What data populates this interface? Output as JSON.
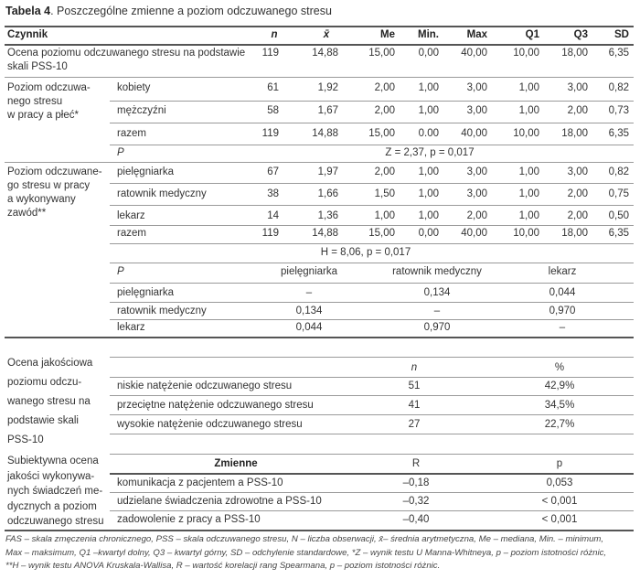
{
  "caption": {
    "label": "Tabela 4",
    "text": ". Poszczególne zmienne a poziom odczuwanego stresu"
  },
  "header": [
    "Czynnik",
    "n",
    "x̄",
    "Me",
    "Min.",
    "Max",
    "Q1",
    "Q3",
    "SD"
  ],
  "overall": {
    "label": "Ocena poziomu odczuwanego stresu na podstawie skali PSS-10",
    "values": [
      "119",
      "14,88",
      "15,00",
      "0,00",
      "40,00",
      "10,00",
      "18,00",
      "6,35"
    ]
  },
  "gender": {
    "label": "Poziom odczuwa-nego stresu w pracy a płeć*",
    "label_lines": [
      "Poziom odczuwa-",
      "nego stresu",
      "w pracy a płeć*"
    ],
    "rows": [
      {
        "label": "kobiety",
        "values": [
          "61",
          "1,92",
          "2,00",
          "1,00",
          "3,00",
          "1,00",
          "3,00",
          "0,82"
        ]
      },
      {
        "label": "mężczyźni",
        "values": [
          "58",
          "1,67",
          "2,00",
          "1,00",
          "3,00",
          "1,00",
          "2,00",
          "0,73"
        ]
      },
      {
        "label": "razem",
        "values": [
          "119",
          "14,88",
          "15,00",
          "0.00",
          "40,00",
          "10,00",
          "18,00",
          "6,35"
        ]
      }
    ],
    "p_label": "P",
    "test": "Z = 2,37, p = 0,017"
  },
  "profession": {
    "label_lines": [
      "Poziom odczuwane-",
      "go stresu w pracy",
      "a wykonywany",
      "zawód**"
    ],
    "rows": [
      {
        "label": "pielęgniarka",
        "values": [
          "67",
          "1,97",
          "2,00",
          "1,00",
          "3,00",
          "1,00",
          "3,00",
          "0,82"
        ]
      },
      {
        "label": "ratownik medyczny",
        "values": [
          "38",
          "1,66",
          "1,50",
          "1,00",
          "3,00",
          "1,00",
          "2,00",
          "0,75"
        ]
      },
      {
        "label": "lekarz",
        "values": [
          "14",
          "1,36",
          "1,00",
          "1,00",
          "2,00",
          "1,00",
          "2,00",
          "0,50"
        ]
      },
      {
        "label": "razem",
        "values": [
          "119",
          "14,88",
          "15,00",
          "0,00",
          "40,00",
          "10,00",
          "18,00",
          "6,35"
        ]
      }
    ],
    "test": "H = 8,06, p = 0,017",
    "pairwise": {
      "corner": "P",
      "columns": [
        "pielęgniarka",
        "ratownik medyczny",
        "lekarz"
      ],
      "rows": [
        {
          "label": "pielęgniarka",
          "values": [
            "–",
            "0,134",
            "0,044"
          ]
        },
        {
          "label": "ratownik medyczny",
          "values": [
            "0,134",
            "–",
            "0,970"
          ]
        },
        {
          "label": "lekarz",
          "values": [
            "0,044",
            "0,970",
            "–"
          ]
        }
      ]
    }
  },
  "qualitative": {
    "label_lines": [
      "Ocena jakościowa",
      "poziomu odczu-",
      "wanego stresu na",
      "podstawie skali",
      "PSS-10"
    ],
    "columns": [
      "n",
      "%"
    ],
    "rows": [
      {
        "label": "niskie natężenie odczuwanego stresu",
        "values": [
          "51",
          "42,9%"
        ]
      },
      {
        "label": "przeciętne natężenie odczuwanego stresu",
        "values": [
          "41",
          "34,5%"
        ]
      },
      {
        "label": "wysokie natężenie odczuwanego stresu",
        "values": [
          "27",
          "22,7%"
        ]
      }
    ]
  },
  "subjective": {
    "label_lines": [
      "Subiektywna ocena",
      "jakości wykonywa-",
      "nych świadczeń me-",
      "dycznych a poziom",
      "odczuwanego stresu"
    ],
    "columns": [
      "Zmienne",
      "R",
      "p"
    ],
    "rows": [
      {
        "label": "komunikacja z pacjentem a PSS-10",
        "values": [
          "–0,18",
          "0,053"
        ]
      },
      {
        "label": "udzielane świadczenia zdrowotne a PSS-10",
        "values": [
          "–0,32",
          "< 0,001"
        ]
      },
      {
        "label": "zadowolenie z pracy a PSS-10",
        "values": [
          "–0,40",
          "< 0,001"
        ]
      }
    ]
  },
  "footnotes": [
    "FAS – skala zmęczenia chronicznego, PSS – skala odczuwanego stresu, N – liczba obserwacji, x̄– średnia arytmetyczna, Me – mediana, Min. – minimum,",
    "Max – maksimum, Q1 –kwartyl dolny, Q3 – kwartyl górny, SD – odchylenie standardowe, *Z – wynik testu U Manna-Whitneya, p – poziom istotności różnic,",
    "**H – wynik testu ANOVA Kruskala-Wallisa, R – wartość korelacji rang Spearmana, p – poziom istotności różnic."
  ]
}
